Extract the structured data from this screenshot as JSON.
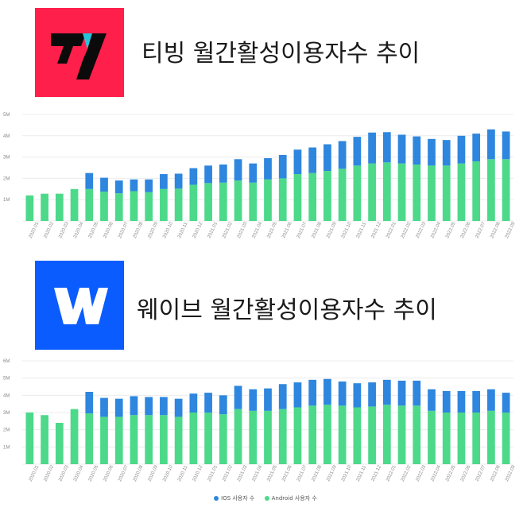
{
  "sections": [
    {
      "logo_letter": "V",
      "title": "티빙 월간활성이용자수 추이"
    },
    {
      "logo_letter": "W",
      "title": "웨이브 월간활성이용자수 추이"
    }
  ],
  "legend": {
    "ios": "IOS 사용자 수",
    "android": "Android 사용자 수"
  },
  "colors": {
    "ios": "#2e86de",
    "android": "#4cd98a",
    "tving_bg": "#ff1f4b",
    "wavve_bg": "#0a5cff"
  },
  "chart_data": [
    {
      "type": "bar",
      "stacked": true,
      "categories": [
        "2020.01",
        "2020.02",
        "2020.03",
        "2020.04",
        "2020.05",
        "2020.06",
        "2020.07",
        "2020.08",
        "2020.09",
        "2020.10",
        "2020.11",
        "2020.12",
        "2021.01",
        "2021.02",
        "2021.03",
        "2021.04",
        "2021.05",
        "2021.06",
        "2021.07",
        "2021.08",
        "2021.09",
        "2021.10",
        "2021.11",
        "2021.12",
        "2022.01",
        "2022.02",
        "2022.03",
        "2022.04",
        "2022.05",
        "2022.06",
        "2022.07",
        "2022.08",
        "2022.09"
      ],
      "yticks": [
        "",
        "1M",
        "2M",
        "3M",
        "4M",
        "5M"
      ],
      "ylim": [
        0,
        5
      ],
      "series": [
        {
          "name": "Android 사용자 수",
          "values": [
            1.2,
            1.28,
            1.28,
            1.5,
            1.5,
            1.38,
            1.3,
            1.4,
            1.35,
            1.5,
            1.52,
            1.7,
            1.78,
            1.8,
            1.9,
            1.8,
            1.95,
            2.0,
            2.2,
            2.25,
            2.35,
            2.45,
            2.6,
            2.7,
            2.75,
            2.7,
            2.65,
            2.6,
            2.6,
            2.7,
            2.8,
            2.9,
            2.9
          ]
        },
        {
          "name": "IOS 사용자 수",
          "values": [
            0,
            0,
            0,
            0,
            0.75,
            0.65,
            0.6,
            0.55,
            0.6,
            0.7,
            0.7,
            0.78,
            0.82,
            0.85,
            1.0,
            0.9,
            1.0,
            1.1,
            1.15,
            1.2,
            1.25,
            1.3,
            1.35,
            1.45,
            1.42,
            1.35,
            1.32,
            1.25,
            1.2,
            1.3,
            1.3,
            1.4,
            1.3
          ]
        }
      ]
    },
    {
      "type": "bar",
      "stacked": true,
      "categories": [
        "2020.01",
        "2020.02",
        "2020.03",
        "2020.04",
        "2020.05",
        "2020.06",
        "2020.07",
        "2020.08",
        "2020.09",
        "2020.10",
        "2020.11",
        "2020.12",
        "2021.01",
        "2021.02",
        "2021.03",
        "2021.04",
        "2021.05",
        "2021.06",
        "2021.07",
        "2021.08",
        "2021.09",
        "2021.10",
        "2021.11",
        "2021.12",
        "2022.01",
        "2022.02",
        "2022.03",
        "2022.04",
        "2022.05",
        "2022.06",
        "2022.07",
        "2022.08",
        "2022.09"
      ],
      "yticks": [
        "",
        "1M",
        "2M",
        "3M",
        "4M",
        "5M",
        "6M"
      ],
      "ylim": [
        0,
        6
      ],
      "series": [
        {
          "name": "Android 사용자 수",
          "values": [
            3.0,
            2.85,
            2.4,
            3.2,
            2.95,
            2.75,
            2.75,
            2.85,
            2.85,
            2.85,
            2.75,
            3.0,
            3.0,
            2.9,
            3.2,
            3.1,
            3.1,
            3.2,
            3.3,
            3.4,
            3.45,
            3.4,
            3.3,
            3.35,
            3.45,
            3.4,
            3.4,
            3.1,
            3.0,
            3.0,
            3.0,
            3.1,
            3.0
          ]
        },
        {
          "name": "IOS 사용자 수",
          "values": [
            0,
            0,
            0,
            0,
            1.25,
            1.1,
            1.05,
            1.1,
            1.05,
            1.05,
            1.05,
            1.1,
            1.15,
            1.1,
            1.35,
            1.25,
            1.3,
            1.45,
            1.45,
            1.5,
            1.5,
            1.4,
            1.4,
            1.4,
            1.45,
            1.45,
            1.45,
            1.25,
            1.25,
            1.25,
            1.25,
            1.25,
            1.15
          ]
        }
      ]
    }
  ]
}
